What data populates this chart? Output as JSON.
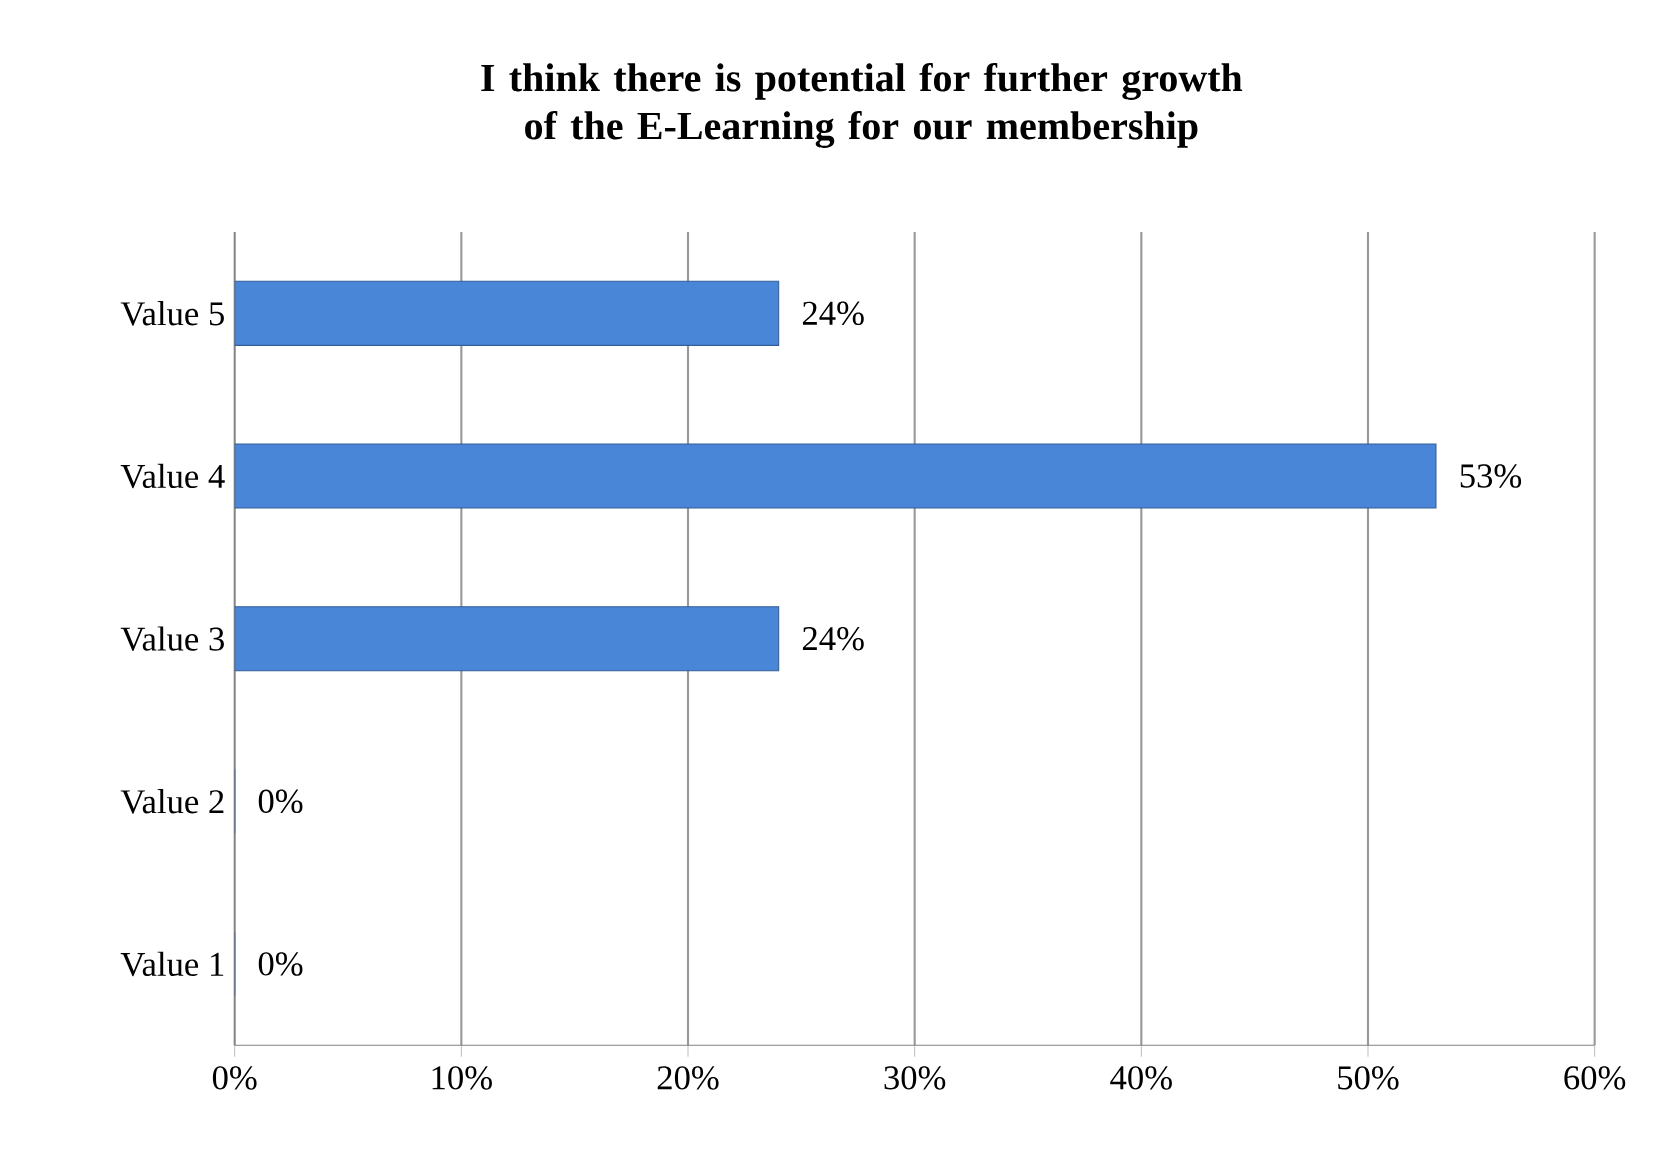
{
  "chart_data": {
    "type": "bar",
    "orientation": "horizontal",
    "title": "I think there is potential for further growth of the E-Learning for our membership",
    "categories": [
      "Value 5",
      "Value 4",
      "Value 3",
      "Value 2",
      "Value 1"
    ],
    "values": [
      24,
      53,
      24,
      0,
      0
    ],
    "value_labels": [
      "24%",
      "53%",
      "24%",
      "0%",
      "0%"
    ],
    "color": "#4a86d8",
    "xlim": [
      0,
      60
    ],
    "xticks": [
      {
        "value": 0,
        "label": "0%"
      },
      {
        "value": 10,
        "label": "10%"
      },
      {
        "value": 20,
        "label": "20%"
      },
      {
        "value": 30,
        "label": "30%"
      },
      {
        "value": 40,
        "label": "40%"
      },
      {
        "value": 50,
        "label": "50%"
      },
      {
        "value": 60,
        "label": "60%"
      }
    ],
    "grid": "x"
  }
}
